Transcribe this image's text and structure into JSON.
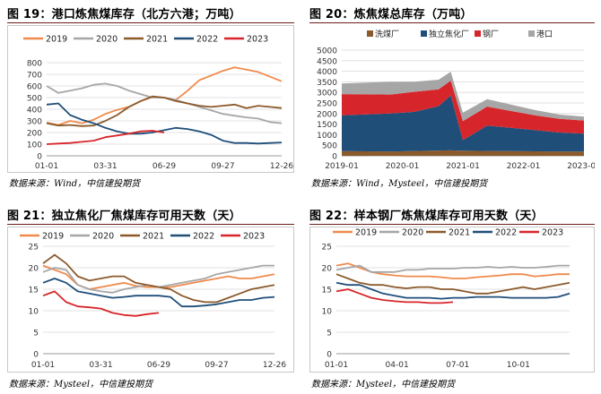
{
  "charts": [
    {
      "title": "图 19：港口炼焦煤库存（北方六港；万吨）",
      "source": "数据来源：Wind，中信建投期货"
    },
    {
      "title": "图 20：炼焦煤总库存（万吨）",
      "source": "数据来源：Wind，Mysteel，中信建投期货"
    },
    {
      "title": "图 21：独立焦化厂焦煤库存可用天数（天）",
      "source": "数据来源：Mysteel，中信建投期货"
    },
    {
      "title": "图 22：样本钢厂炼焦煤库存可用天数（天）",
      "source": "数据来源：Mysteel，中信建投期货"
    }
  ],
  "chart_data": [
    {
      "type": "line",
      "title": "图 19：港口炼焦煤库存（北方六港；万吨）",
      "categories": [
        "01-01",
        "03-31",
        "06-29",
        "09-27",
        "12-26"
      ],
      "ylim": [
        0,
        800
      ],
      "yticks": [
        0,
        100,
        200,
        300,
        400,
        500,
        600,
        700,
        800
      ],
      "series": [
        {
          "name": "2019",
          "color": "#f08a4b",
          "x": [
            0,
            0.05,
            0.1,
            0.15,
            0.2,
            0.25,
            0.3,
            0.35,
            0.4,
            0.45,
            0.5,
            0.55,
            0.6,
            0.65,
            0.7,
            0.75,
            0.8,
            0.85,
            0.9,
            0.95,
            1.0
          ],
          "values": [
            285,
            265,
            300,
            280,
            310,
            360,
            395,
            420,
            470,
            505,
            500,
            480,
            560,
            650,
            690,
            730,
            760,
            740,
            720,
            680,
            640
          ]
        },
        {
          "name": "2020",
          "color": "#a6a6a6",
          "x": [
            0,
            0.05,
            0.1,
            0.15,
            0.2,
            0.25,
            0.3,
            0.35,
            0.4,
            0.45,
            0.5,
            0.55,
            0.6,
            0.65,
            0.7,
            0.75,
            0.8,
            0.85,
            0.9,
            0.95,
            1.0
          ],
          "values": [
            600,
            540,
            560,
            580,
            610,
            620,
            600,
            560,
            530,
            500,
            500,
            480,
            450,
            420,
            390,
            360,
            345,
            330,
            320,
            290,
            280
          ]
        },
        {
          "name": "2021",
          "color": "#8b5a2b",
          "x": [
            0,
            0.05,
            0.1,
            0.15,
            0.2,
            0.25,
            0.3,
            0.35,
            0.4,
            0.45,
            0.5,
            0.55,
            0.6,
            0.65,
            0.7,
            0.75,
            0.8,
            0.85,
            0.9,
            0.95,
            1.0
          ],
          "values": [
            280,
            260,
            265,
            255,
            260,
            300,
            350,
            420,
            470,
            510,
            500,
            470,
            450,
            430,
            420,
            430,
            440,
            410,
            430,
            420,
            410
          ]
        },
        {
          "name": "2022",
          "color": "#1f4e79",
          "x": [
            0,
            0.05,
            0.1,
            0.15,
            0.2,
            0.25,
            0.3,
            0.35,
            0.4,
            0.45,
            0.5,
            0.55,
            0.6,
            0.65,
            0.7,
            0.75,
            0.8,
            0.85,
            0.9,
            0.95,
            1.0
          ],
          "values": [
            440,
            450,
            350,
            310,
            280,
            240,
            210,
            190,
            190,
            200,
            220,
            240,
            230,
            210,
            180,
            130,
            110,
            110,
            105,
            110,
            115
          ]
        },
        {
          "name": "2023",
          "color": "#d7262b",
          "x": [
            0,
            0.05,
            0.1,
            0.15,
            0.2,
            0.25,
            0.3,
            0.35,
            0.4,
            0.45,
            0.5
          ],
          "values": [
            100,
            105,
            110,
            120,
            130,
            160,
            175,
            190,
            210,
            215,
            200
          ]
        }
      ]
    },
    {
      "type": "area",
      "title": "图 20：炼焦煤总库存（万吨）",
      "categories": [
        "2019-01",
        "2020-01",
        "2021-01",
        "2022-01",
        "2023-01"
      ],
      "ylim": [
        0,
        5000
      ],
      "yticks": [
        0,
        500,
        1000,
        1500,
        2000,
        2500,
        3000,
        3500,
        4000,
        4500,
        5000
      ],
      "series": [
        {
          "name": "洗煤厂",
          "color": "#8b5a2b",
          "x": [
            0,
            0.1,
            0.2,
            0.3,
            0.4,
            0.45,
            0.5,
            0.6,
            0.7,
            0.8,
            0.9,
            1.0
          ],
          "values": [
            220,
            210,
            200,
            230,
            250,
            260,
            240,
            230,
            220,
            210,
            200,
            200
          ]
        },
        {
          "name": "独立焦化厂",
          "color": "#1f4e79",
          "x": [
            0,
            0.1,
            0.2,
            0.3,
            0.4,
            0.45,
            0.5,
            0.6,
            0.7,
            0.8,
            0.9,
            1.0
          ],
          "values": [
            1700,
            1750,
            1800,
            1850,
            2100,
            2600,
            500,
            1200,
            1100,
            1000,
            900,
            850
          ]
        },
        {
          "name": "钢厂",
          "color": "#d7262b",
          "x": [
            0,
            0.1,
            0.2,
            0.3,
            0.4,
            0.45,
            0.5,
            0.6,
            0.7,
            0.8,
            0.9,
            1.0
          ],
          "values": [
            1000,
            950,
            900,
            950,
            800,
            700,
            900,
            900,
            800,
            700,
            650,
            620
          ]
        },
        {
          "name": "港口",
          "color": "#a6a6a6",
          "x": [
            0,
            0.1,
            0.2,
            0.3,
            0.4,
            0.45,
            0.5,
            0.6,
            0.7,
            0.8,
            0.9,
            1.0
          ],
          "values": [
            500,
            550,
            600,
            480,
            450,
            420,
            400,
            350,
            300,
            250,
            200,
            180
          ]
        }
      ]
    },
    {
      "type": "line",
      "title": "图 21：独立焦化厂焦煤库存可用天数（天）",
      "categories": [
        "01-01",
        "03-31",
        "06-29",
        "09-27",
        "12-26"
      ],
      "ylim": [
        0,
        25
      ],
      "yticks": [
        0,
        5,
        10,
        15,
        20,
        25
      ],
      "series": [
        {
          "name": "2019",
          "color": "#f08a4b",
          "x": [
            0,
            0.05,
            0.1,
            0.15,
            0.2,
            0.25,
            0.3,
            0.35,
            0.4,
            0.45,
            0.5,
            0.55,
            0.6,
            0.65,
            0.7,
            0.75,
            0.8,
            0.85,
            0.9,
            0.95,
            1.0
          ],
          "values": [
            20.5,
            19.5,
            18.5,
            16,
            15,
            15.5,
            16,
            16.5,
            15.8,
            15.5,
            15.5,
            15.5,
            16,
            16.5,
            17,
            17.5,
            18,
            17.5,
            17.5,
            18,
            18.5
          ]
        },
        {
          "name": "2020",
          "color": "#a6a6a6",
          "x": [
            0,
            0.05,
            0.1,
            0.15,
            0.2,
            0.25,
            0.3,
            0.35,
            0.4,
            0.45,
            0.5,
            0.55,
            0.6,
            0.65,
            0.7,
            0.75,
            0.8,
            0.85,
            0.9,
            0.95,
            1.0
          ],
          "values": [
            19,
            20,
            19.5,
            16,
            15,
            14.5,
            14.2,
            15,
            15.5,
            16,
            15.5,
            16,
            16.5,
            17,
            17.5,
            18.5,
            19,
            19.5,
            20,
            20.5,
            20.5
          ]
        },
        {
          "name": "2021",
          "color": "#8b5a2b",
          "x": [
            0,
            0.05,
            0.1,
            0.15,
            0.2,
            0.25,
            0.3,
            0.35,
            0.4,
            0.45,
            0.5,
            0.55,
            0.6,
            0.65,
            0.7,
            0.75,
            0.8,
            0.85,
            0.9,
            0.95,
            1.0
          ],
          "values": [
            21,
            23,
            21,
            18,
            17,
            17.5,
            18,
            18,
            16.5,
            16,
            15.5,
            15,
            13.5,
            12.5,
            12,
            12,
            13,
            14,
            15,
            15.5,
            16
          ]
        },
        {
          "name": "2022",
          "color": "#1f4e79",
          "x": [
            0,
            0.05,
            0.1,
            0.15,
            0.2,
            0.25,
            0.3,
            0.35,
            0.4,
            0.45,
            0.5,
            0.55,
            0.6,
            0.65,
            0.7,
            0.75,
            0.8,
            0.85,
            0.9,
            0.95,
            1.0
          ],
          "values": [
            16.5,
            17.5,
            16.5,
            14.5,
            14,
            13.5,
            13,
            13.2,
            13.5,
            13.5,
            13.5,
            13.2,
            11,
            11,
            11.2,
            11.5,
            12,
            12.5,
            12.5,
            13,
            13.2
          ]
        },
        {
          "name": "2023",
          "color": "#d7262b",
          "x": [
            0,
            0.05,
            0.1,
            0.15,
            0.2,
            0.25,
            0.3,
            0.35,
            0.4,
            0.45,
            0.5
          ],
          "values": [
            13.5,
            14.5,
            12,
            11,
            10.8,
            10.5,
            9.5,
            9,
            8.8,
            9.2,
            9.5
          ]
        }
      ]
    },
    {
      "type": "line",
      "title": "图 22：样本钢厂炼焦煤库存可用天数（天）",
      "categories": [
        "01-01",
        "04-01",
        "07-01",
        "10-01"
      ],
      "ylim": [
        0,
        25
      ],
      "yticks": [
        0,
        5,
        10,
        15,
        20,
        25
      ],
      "series": [
        {
          "name": "2019",
          "color": "#f08a4b",
          "x": [
            0,
            0.05,
            0.1,
            0.15,
            0.2,
            0.25,
            0.3,
            0.35,
            0.4,
            0.45,
            0.5,
            0.55,
            0.6,
            0.65,
            0.7,
            0.75,
            0.8,
            0.85,
            0.9,
            0.95,
            1.0
          ],
          "values": [
            20.5,
            21,
            20,
            19,
            18.5,
            18.2,
            18,
            18,
            18,
            17.8,
            17.5,
            17.5,
            17.8,
            18,
            18.2,
            18.5,
            18.5,
            18,
            18.2,
            18.5,
            18.5
          ]
        },
        {
          "name": "2020",
          "color": "#a6a6a6",
          "x": [
            0,
            0.05,
            0.1,
            0.15,
            0.2,
            0.25,
            0.3,
            0.35,
            0.4,
            0.45,
            0.5,
            0.55,
            0.6,
            0.65,
            0.7,
            0.75,
            0.8,
            0.85,
            0.9,
            0.95,
            1.0
          ],
          "values": [
            19.5,
            20,
            20.5,
            19,
            19,
            19,
            19.5,
            19.5,
            19.8,
            19.8,
            19.8,
            20,
            20,
            20.2,
            20,
            20.2,
            20,
            20,
            20.2,
            20.5,
            20.5
          ]
        },
        {
          "name": "2021",
          "color": "#8b5a2b",
          "x": [
            0,
            0.05,
            0.1,
            0.15,
            0.2,
            0.25,
            0.3,
            0.35,
            0.4,
            0.45,
            0.5,
            0.55,
            0.6,
            0.65,
            0.7,
            0.75,
            0.8,
            0.85,
            0.9,
            0.95,
            1.0
          ],
          "values": [
            18.5,
            17.5,
            16.5,
            16,
            16,
            15.5,
            15.2,
            15.5,
            15.5,
            15,
            15,
            14.5,
            14,
            14,
            14.5,
            15,
            15.5,
            15,
            15.5,
            16,
            16.5
          ]
        },
        {
          "name": "2022",
          "color": "#1f4e79",
          "x": [
            0,
            0.05,
            0.1,
            0.15,
            0.2,
            0.25,
            0.3,
            0.35,
            0.4,
            0.45,
            0.5,
            0.55,
            0.6,
            0.65,
            0.7,
            0.75,
            0.8,
            0.85,
            0.9,
            0.95,
            1.0
          ],
          "values": [
            16.5,
            16,
            16,
            15,
            14,
            13.5,
            13,
            13,
            13,
            12.8,
            13,
            13,
            13.2,
            13.2,
            13.2,
            13,
            13,
            13,
            13,
            13.2,
            14
          ]
        },
        {
          "name": "2023",
          "color": "#d7262b",
          "x": [
            0,
            0.05,
            0.1,
            0.15,
            0.2,
            0.25,
            0.3,
            0.35,
            0.4,
            0.45,
            0.5
          ],
          "values": [
            14.5,
            15,
            14,
            13,
            12.5,
            12.2,
            12,
            12,
            11.8,
            11.8,
            12
          ]
        }
      ]
    }
  ]
}
